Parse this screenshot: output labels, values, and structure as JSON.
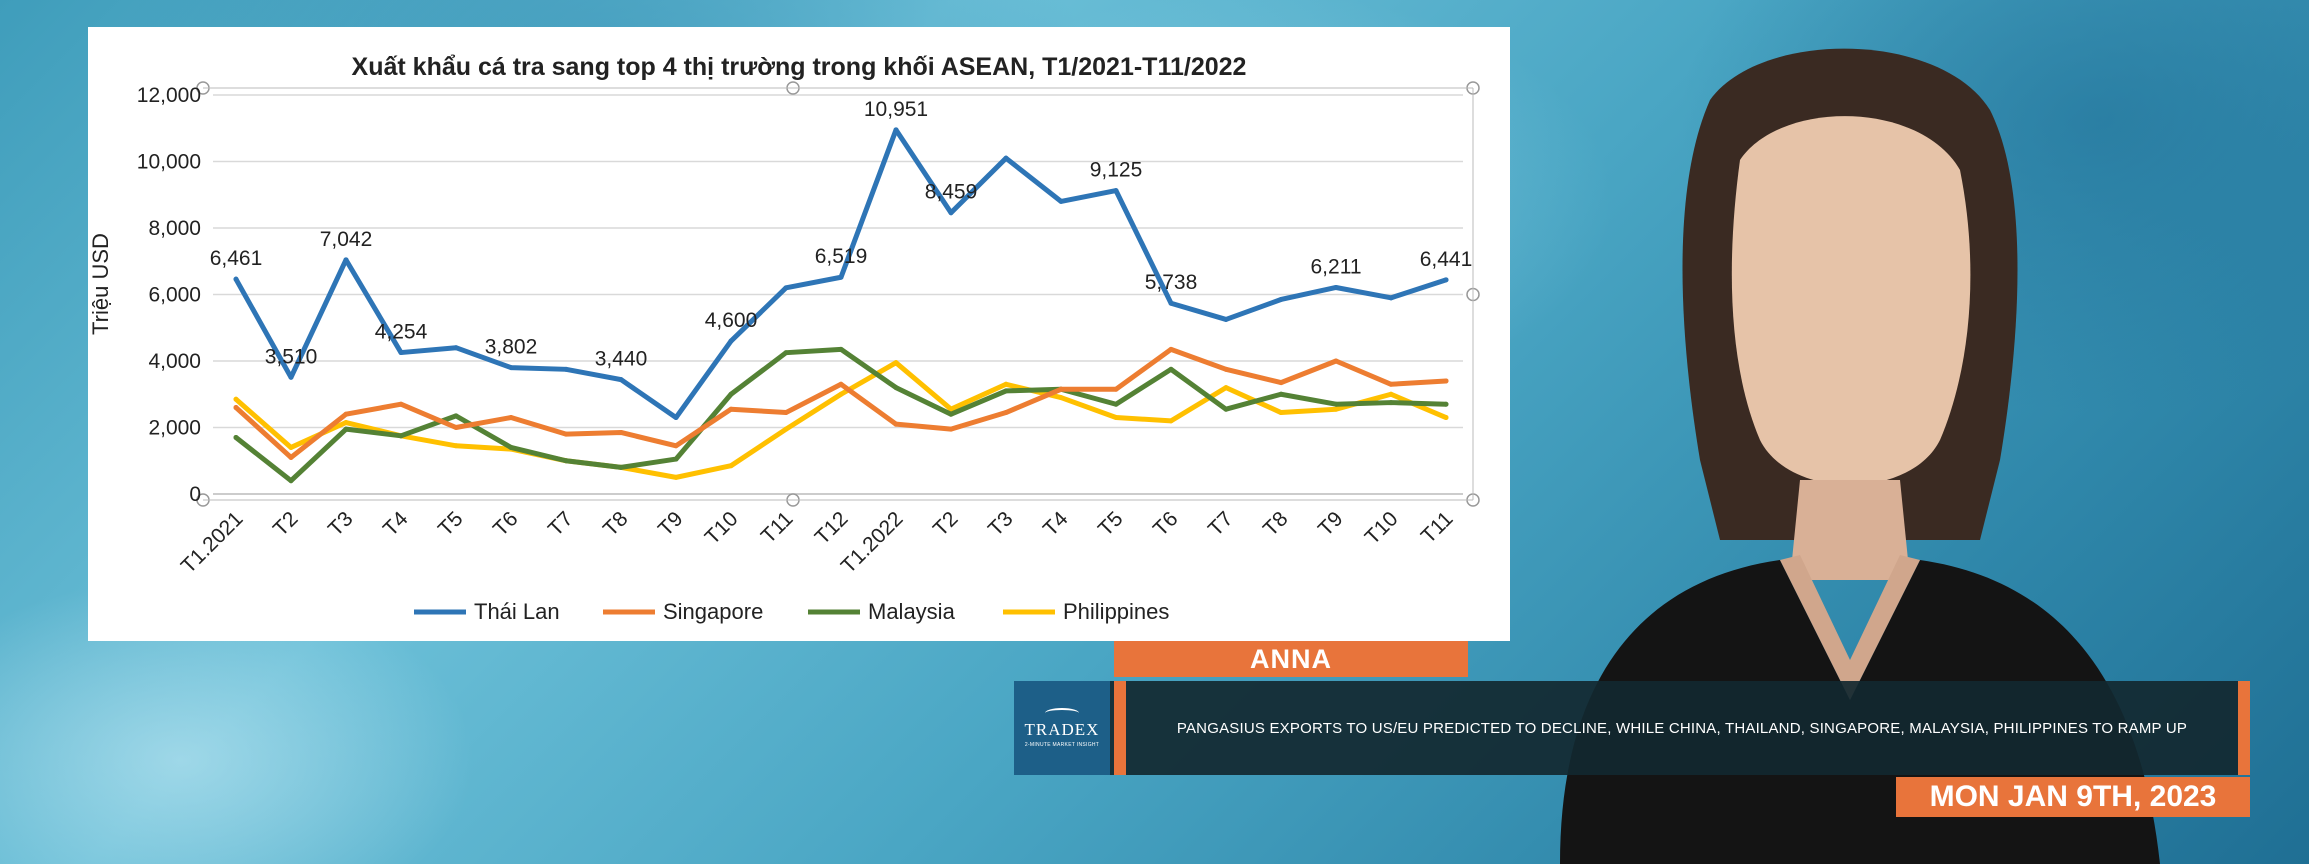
{
  "chart_data": {
    "type": "line",
    "title": "Xuất khẩu cá tra sang top 4 thị trường trong khối ASEAN, T1/2021-T11/2022",
    "ylabel": "Triệu USD",
    "xlabel": "",
    "ylim": [
      0,
      12000
    ],
    "yticks": [
      "0",
      "2,000",
      "4,000",
      "6,000",
      "8,000",
      "10,000",
      "12,000"
    ],
    "categories": [
      "T1.2021",
      "T2",
      "T3",
      "T4",
      "T5",
      "T6",
      "T7",
      "T8",
      "T9",
      "T10",
      "T11",
      "T12",
      "T1.2022",
      "T2",
      "T3",
      "T4",
      "T5",
      "T6",
      "T7",
      "T8",
      "T9",
      "T10",
      "T11"
    ],
    "grid": "horizontal",
    "legend_position": "bottom",
    "series": [
      {
        "name": "Thái Lan",
        "color": "#2e75b6",
        "values": [
          6461,
          3510,
          7042,
          4254,
          4400,
          3802,
          3750,
          3440,
          2300,
          4600,
          6200,
          6519,
          10951,
          8459,
          10100,
          8800,
          9125,
          5738,
          5250,
          5850,
          6211,
          5900,
          6441
        ]
      },
      {
        "name": "Singapore",
        "color": "#ed7d31",
        "values": [
          2600,
          1100,
          2400,
          2700,
          2000,
          2300,
          1800,
          1850,
          1450,
          2550,
          2450,
          3300,
          2100,
          1950,
          2450,
          3150,
          3150,
          4350,
          3750,
          3350,
          4000,
          3300,
          3400
        ]
      },
      {
        "name": "Malaysia",
        "color": "#548235",
        "values": [
          1700,
          400,
          1950,
          1750,
          2350,
          1400,
          1000,
          800,
          1050,
          3000,
          4250,
          4350,
          3200,
          2400,
          3100,
          3150,
          2700,
          3750,
          2550,
          3000,
          2700,
          2750,
          2700
        ]
      },
      {
        "name": "Philippines",
        "color": "#ffc000",
        "values": [
          2850,
          1400,
          2150,
          1750,
          1450,
          1350,
          1000,
          800,
          500,
          850,
          1950,
          3000,
          3950,
          2550,
          3300,
          2900,
          2300,
          2200,
          3200,
          2450,
          2550,
          3000,
          2300
        ]
      }
    ],
    "data_labels": [
      {
        "series": 0,
        "index": 0,
        "text": "6,461"
      },
      {
        "series": 0,
        "index": 1,
        "text": "3,510"
      },
      {
        "series": 0,
        "index": 2,
        "text": "7,042"
      },
      {
        "series": 0,
        "index": 3,
        "text": "4,254"
      },
      {
        "series": 0,
        "index": 5,
        "text": "3,802"
      },
      {
        "series": 0,
        "index": 7,
        "text": "3,440"
      },
      {
        "series": 0,
        "index": 9,
        "text": "4,600"
      },
      {
        "series": 0,
        "index": 11,
        "text": "6,519"
      },
      {
        "series": 0,
        "index": 12,
        "text": "10,951"
      },
      {
        "series": 0,
        "index": 13,
        "text": "8,459"
      },
      {
        "series": 0,
        "index": 16,
        "text": "9,125"
      },
      {
        "series": 0,
        "index": 17,
        "text": "5,738"
      },
      {
        "series": 0,
        "index": 20,
        "text": "6,211"
      },
      {
        "series": 0,
        "index": 22,
        "text": "6,441"
      }
    ]
  },
  "lower_third": {
    "presenter_name": "ANNA",
    "logo_brand": "TRADEX",
    "logo_sub": "2-MINUTE MARKET INSIGHT",
    "headline": "PANGASIUS EXPORTS TO US/EU PREDICTED TO DECLINE, WHILE CHINA, THAILAND, SINGAPORE, MALAYSIA, PHILIPPINES TO RAMP UP",
    "date": "MON JAN 9TH, 2023",
    "accent_color": "#e8743b"
  }
}
